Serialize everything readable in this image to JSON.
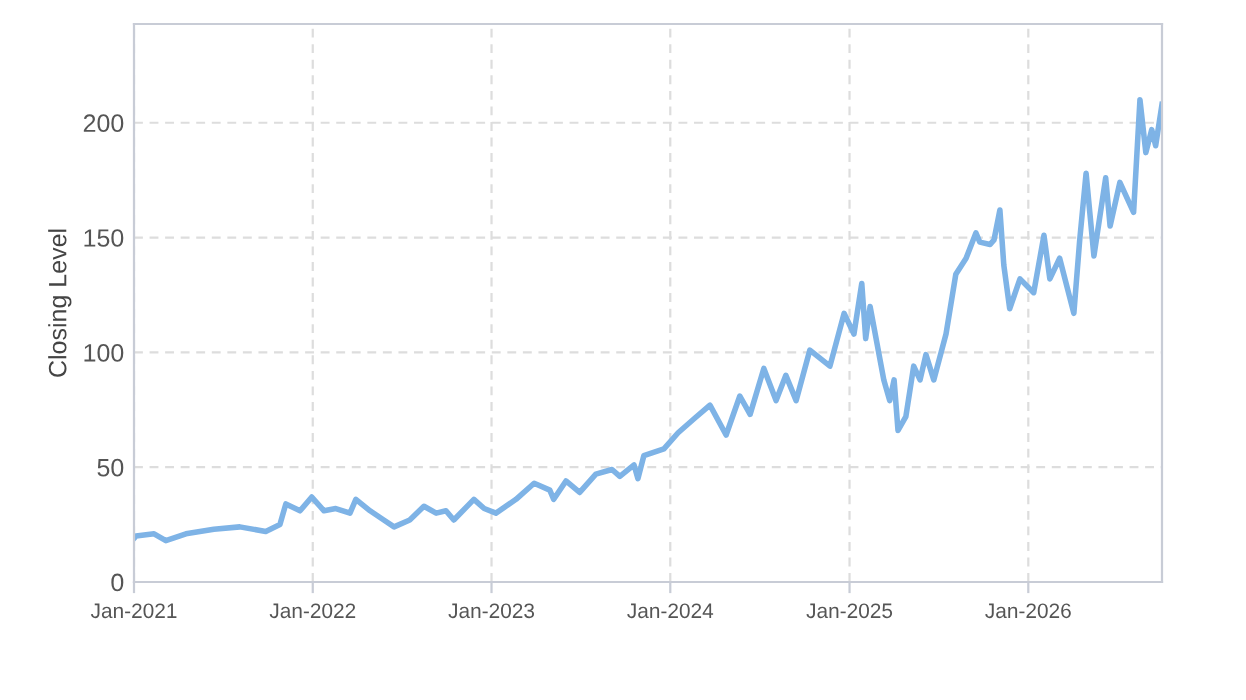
{
  "chart_data": {
    "type": "line",
    "ylabel": "Closing Level",
    "x": [
      "2021-01-01",
      "2021-01-05",
      "2021-02-11",
      "2021-03-07",
      "2021-04-17",
      "2021-06-13",
      "2021-08-05",
      "2021-09-27",
      "2021-10-26",
      "2021-11-07",
      "2021-12-06",
      "2021-12-30",
      "2022-01-24",
      "2022-02-17",
      "2022-03-18",
      "2022-03-30",
      "2022-04-28",
      "2022-05-26",
      "2022-06-16",
      "2022-07-18",
      "2022-08-16",
      "2022-09-10",
      "2022-09-30",
      "2022-10-16",
      "2022-11-26",
      "2022-12-17",
      "2023-01-10",
      "2023-02-20",
      "2023-03-29",
      "2023-04-30",
      "2023-05-08",
      "2023-06-02",
      "2023-06-30",
      "2023-08-02",
      "2023-09-04",
      "2023-09-20",
      "2023-10-19",
      "2023-10-27",
      "2023-11-08",
      "2023-12-19",
      "2024-01-17",
      "2024-02-18",
      "2024-03-22",
      "2024-04-24",
      "2024-05-22",
      "2024-06-12",
      "2024-07-10",
      "2024-08-04",
      "2024-08-24",
      "2024-09-14",
      "2024-10-12",
      "2024-11-22",
      "2024-12-21",
      "2025-01-10",
      "2025-01-26",
      "2025-02-03",
      "2025-02-12",
      "2025-03-12",
      "2025-03-24",
      "2025-04-02",
      "2025-04-10",
      "2025-04-26",
      "2025-05-12",
      "2025-05-25",
      "2025-06-06",
      "2025-06-22",
      "2025-07-17",
      "2025-08-06",
      "2025-08-27",
      "2025-09-16",
      "2025-09-24",
      "2025-10-15",
      "2025-10-23",
      "2025-11-04",
      "2025-11-12",
      "2025-11-24",
      "2025-12-15",
      "2026-01-12",
      "2026-02-02",
      "2026-02-14",
      "2026-03-06",
      "2026-04-04",
      "2026-04-16",
      "2026-04-29",
      "2026-05-15",
      "2026-06-08",
      "2026-06-17",
      "2026-07-07",
      "2026-08-04",
      "2026-08-17",
      "2026-08-29",
      "2026-09-10",
      "2026-09-18",
      "2026-10-01"
    ],
    "series": [
      {
        "color": "#7eb3e6",
        "values": [
          19,
          20,
          21,
          18,
          21,
          23,
          24,
          22,
          25,
          34,
          31,
          37,
          31,
          32,
          30,
          36,
          31,
          27,
          24,
          27,
          33,
          30,
          31,
          27,
          36,
          32,
          30,
          36,
          43,
          40,
          36,
          44,
          39,
          47,
          49,
          46,
          51,
          45,
          55,
          58,
          65,
          71,
          77,
          64,
          81,
          73,
          93,
          79,
          90,
          79,
          101,
          94,
          117,
          108,
          130,
          106,
          120,
          88,
          79,
          88,
          66,
          72,
          94,
          88,
          99,
          88,
          108,
          134,
          141,
          152,
          148,
          147,
          149,
          162,
          138,
          119,
          132,
          126,
          151,
          132,
          141,
          117,
          149,
          178,
          142,
          176,
          155,
          174,
          161,
          210,
          187,
          197,
          190,
          208
        ]
      }
    ],
    "xlim": [
      "2021-01-01",
      "2026-10-01"
    ],
    "xticks": [
      {
        "value": "2021-01-01",
        "label": "Jan-2021"
      },
      {
        "value": "2022-01-01",
        "label": "Jan-2022"
      },
      {
        "value": "2023-01-01",
        "label": "Jan-2023"
      },
      {
        "value": "2024-01-01",
        "label": "Jan-2024"
      },
      {
        "value": "2025-01-01",
        "label": "Jan-2025"
      },
      {
        "value": "2026-01-01",
        "label": "Jan-2026"
      }
    ],
    "ylim": [
      0,
      243
    ],
    "yticks": [
      0,
      50,
      100,
      150,
      200
    ],
    "grid": true,
    "marker": "none",
    "line_style": "solid"
  }
}
